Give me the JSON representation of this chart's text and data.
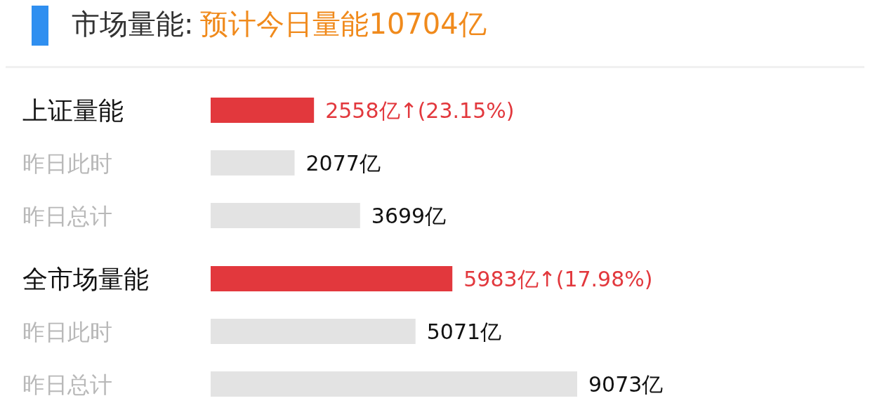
{
  "chart_data": {
    "type": "bar",
    "orientation": "horizontal",
    "title": "市场量能:",
    "subtitle": "预计今日量能10704亿",
    "categories": [
      "上证量能",
      "昨日此时",
      "昨日总计",
      "全市场量能",
      "昨日此时",
      "昨日总计"
    ],
    "values": [
      2558,
      2077,
      3699,
      5983,
      5071,
      9073
    ],
    "colors": [
      "#e2383d",
      "#e3e3e3",
      "#e3e3e3",
      "#e2383d",
      "#e3e3e3",
      "#e3e3e3"
    ],
    "value_labels": [
      "2558亿↑(23.15%)",
      "2077亿",
      "3699亿",
      "5983亿↑(17.98%)",
      "5071亿",
      "9073亿"
    ]
  }
}
